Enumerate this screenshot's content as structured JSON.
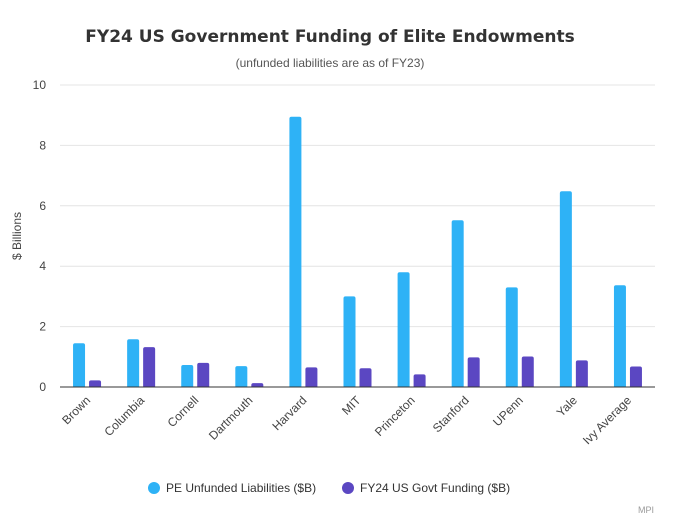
{
  "chart_data": {
    "type": "bar",
    "title": "FY24 US Government Funding of Elite Endowments",
    "subtitle": "(unfunded liabilities are as of FY23)",
    "xlabel": "",
    "ylabel": "$ Billions",
    "ylim": [
      0,
      10
    ],
    "yticks": [
      0,
      2,
      4,
      6,
      8,
      10
    ],
    "grid": true,
    "legend_position": "bottom",
    "categories": [
      "Brown",
      "Columbia",
      "Cornell",
      "Dartmouth",
      "Harvard",
      "MIT",
      "Princeton",
      "Stanford",
      "UPenn",
      "Yale",
      "Ivy Average"
    ],
    "series": [
      {
        "name": "PE Unfunded Liabilities ($B)",
        "color": "#2eb2f6",
        "values": [
          1.45,
          1.58,
          0.73,
          0.69,
          8.95,
          3.0,
          3.8,
          5.52,
          3.3,
          6.48,
          3.37
        ]
      },
      {
        "name": "FY24 US Govt Funding ($B)",
        "color": "#5b47c2",
        "values": [
          0.22,
          1.32,
          0.8,
          0.13,
          0.65,
          0.62,
          0.42,
          0.98,
          1.01,
          0.88,
          0.68
        ]
      }
    ],
    "credit": "MPI"
  }
}
